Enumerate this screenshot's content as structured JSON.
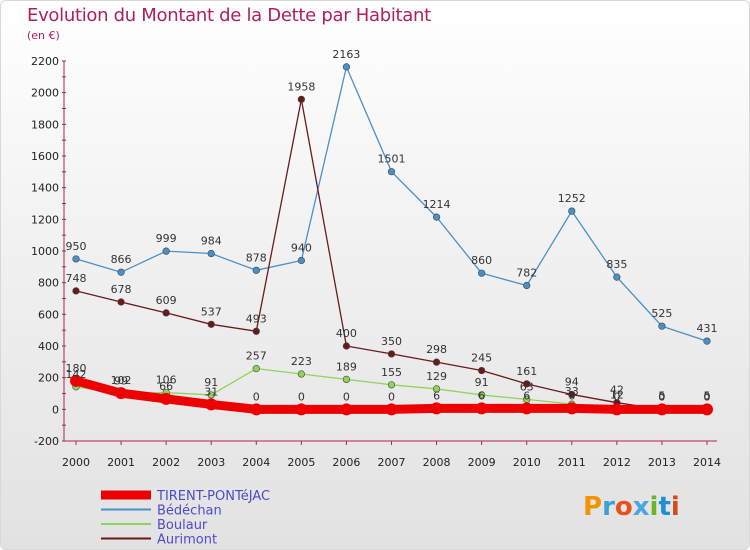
{
  "title": "Evolution du Montant de la Dette par Habitant",
  "subtitle": "(en €)",
  "logo": {
    "text": "Proxiti",
    "colors": [
      "#f29400",
      "#3aa0d8",
      "#e8501e",
      "#4aa6e0",
      "#6bb52e",
      "#1d8fd6",
      "#d64a1a"
    ]
  },
  "chart_data": {
    "type": "line",
    "x": [
      2000,
      2001,
      2002,
      2003,
      2004,
      2005,
      2006,
      2007,
      2008,
      2009,
      2010,
      2011,
      2012,
      2013,
      2014
    ],
    "ylim": [
      -200,
      2200
    ],
    "yticks": [
      -200,
      0,
      200,
      400,
      600,
      800,
      1000,
      1200,
      1400,
      1600,
      1800,
      2000,
      2200
    ],
    "grid": false,
    "legend": "bottom-left",
    "series": [
      {
        "name": "Bédéchan",
        "color": "#4a90c8",
        "values": [
          950,
          866,
          999,
          984,
          878,
          940,
          2163,
          1501,
          1214,
          860,
          782,
          1252,
          835,
          525,
          431
        ]
      },
      {
        "name": "Aurimont",
        "color": "#6b1a1a",
        "values": [
          748,
          678,
          609,
          537,
          493,
          1958,
          400,
          350,
          298,
          245,
          161,
          94,
          42,
          0,
          0
        ]
      },
      {
        "name": "Boulaur",
        "color": "#8fd45a",
        "values": [
          142,
          99,
          106,
          91,
          257,
          223,
          189,
          155,
          129,
          91,
          63,
          33,
          12,
          5,
          5
        ]
      },
      {
        "name": "TIRENT-PONTéJAC",
        "color": "#ee0000",
        "values": [
          180,
          102,
          66,
          31,
          0,
          0,
          0,
          0,
          6,
          6,
          6,
          6,
          0,
          0,
          0
        ]
      }
    ],
    "legend_order": [
      "TIRENT-PONTéJAC",
      "Bédéchan",
      "Boulaur",
      "Aurimont"
    ]
  }
}
